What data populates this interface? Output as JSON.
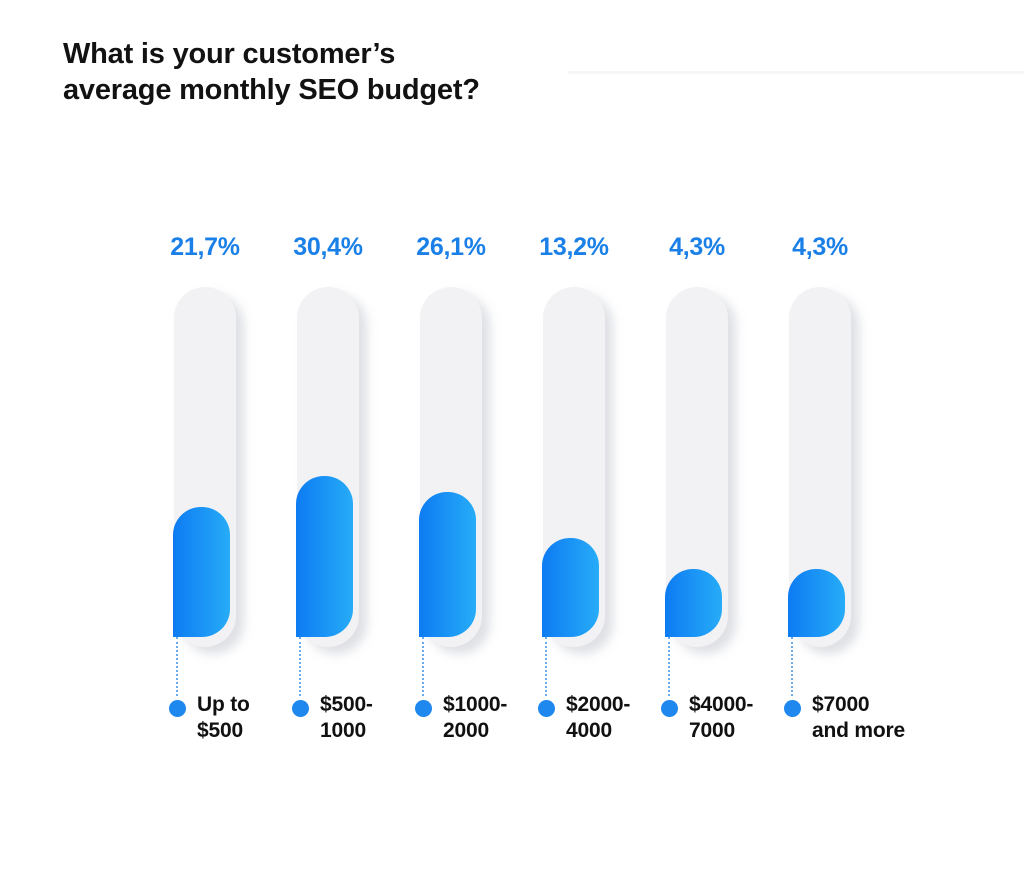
{
  "title": "What is your customer’s\naverage monthly SEO budget?",
  "chart_data": {
    "type": "bar",
    "title": "What is your customer’s average monthly SEO budget?",
    "orientation": "vertical",
    "grid": false,
    "legend": "none",
    "unit": "%",
    "categories": [
      "Up to $500",
      "$500-1000",
      "$1000-2000",
      "$2000-4000",
      "$4000-7000",
      "$7000 and more"
    ],
    "category_lines": [
      "Up to\n$500",
      "$500-\n1000",
      "$1000-\n2000",
      "$2000-\n4000",
      "$4000-\n7000",
      "$7000\nand more"
    ],
    "values": [
      21.7,
      30.4,
      26.1,
      13.2,
      4.3,
      4.3
    ],
    "value_labels": [
      "21,7%",
      "30,4%",
      "26,1%",
      "13,2%",
      "4,3%",
      "4,3%"
    ],
    "colors": {
      "value_label": "#1a80e8",
      "bar_gradient_start": "#0d7bf2",
      "bar_gradient_end": "#27acf8",
      "track": "#f2f2f4",
      "connector": "#6aaced",
      "dot": "#1e88ee",
      "category_text": "#111111",
      "title_text": "#121212"
    }
  }
}
